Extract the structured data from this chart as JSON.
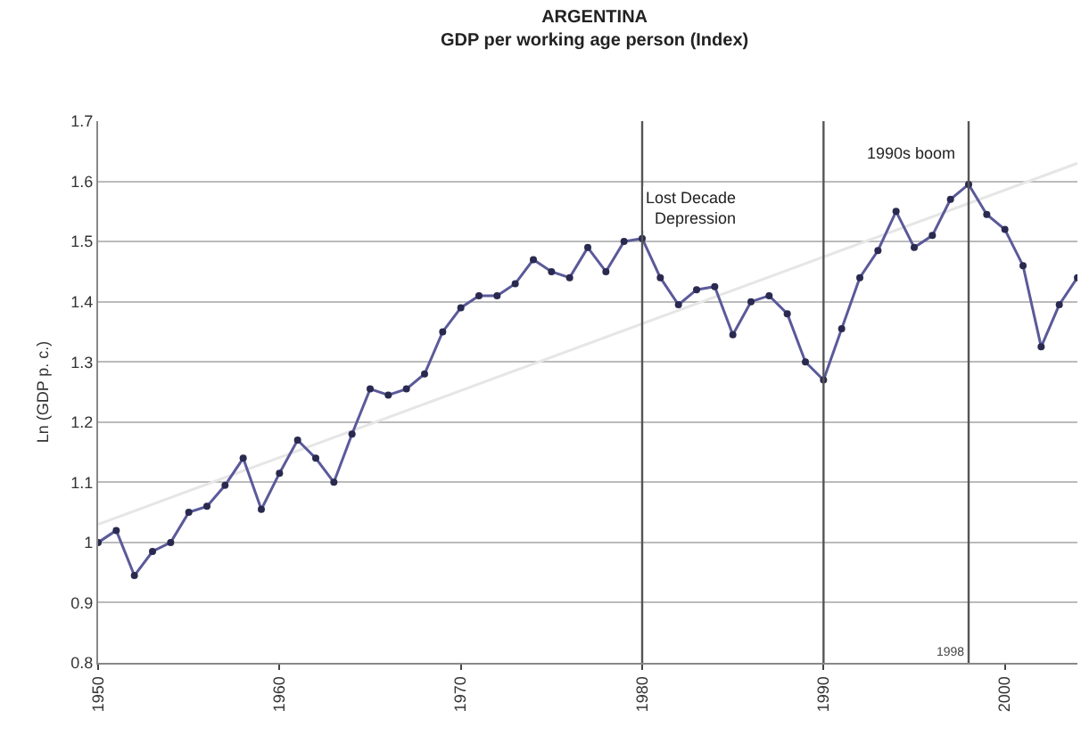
{
  "chart_data": {
    "type": "line",
    "title": "ARGENTINA",
    "subtitle": "GDP per working age person (Index)",
    "ylabel": "Ln (GDP p. c.)",
    "x": [
      1950,
      1951,
      1952,
      1953,
      1954,
      1955,
      1956,
      1957,
      1958,
      1959,
      1960,
      1961,
      1962,
      1963,
      1964,
      1965,
      1966,
      1967,
      1968,
      1969,
      1970,
      1971,
      1972,
      1973,
      1974,
      1975,
      1976,
      1977,
      1978,
      1979,
      1980,
      1981,
      1982,
      1983,
      1984,
      1985,
      1986,
      1987,
      1988,
      1989,
      1990,
      1991,
      1992,
      1993,
      1994,
      1995,
      1996,
      1997,
      1998,
      1999,
      2000,
      2001,
      2002,
      2003,
      2004
    ],
    "series": [
      {
        "color": "#5a5a9a",
        "marker": "circle",
        "values": [
          1.0,
          1.02,
          0.945,
          0.985,
          1.0,
          1.05,
          1.06,
          1.095,
          1.14,
          1.055,
          1.115,
          1.17,
          1.14,
          1.1,
          1.18,
          1.255,
          1.245,
          1.255,
          1.28,
          1.35,
          1.39,
          1.41,
          1.41,
          1.43,
          1.47,
          1.45,
          1.44,
          1.49,
          1.45,
          1.5,
          1.505,
          1.44,
          1.395,
          1.42,
          1.425,
          1.345,
          1.4,
          1.41,
          1.38,
          1.3,
          1.27,
          1.355,
          1.44,
          1.485,
          1.55,
          1.49,
          1.51,
          1.57,
          1.595,
          1.545,
          1.52,
          1.46,
          1.325,
          1.395,
          1.44
        ]
      },
      {
        "type": "line",
        "color": "#e6e6e6",
        "marker": "none",
        "x": [
          1950,
          2004
        ],
        "values": [
          1.03,
          1.63
        ]
      }
    ],
    "xlim": [
      1950,
      2004
    ],
    "xticks": [
      1950,
      1960,
      1970,
      1980,
      1990,
      2000
    ],
    "ylim": [
      0.8,
      1.7
    ],
    "yticks": [
      {
        "value": 0.8,
        "label": "0.8"
      },
      {
        "value": 0.9,
        "label": "0.9"
      },
      1,
      {
        "value": 1.1,
        "label": "1.1"
      },
      {
        "value": 1.2,
        "label": "1.2"
      },
      {
        "value": 1.3,
        "label": "1.3"
      },
      {
        "value": 1.4,
        "label": "1.4"
      },
      {
        "value": 1.5,
        "label": "1.5"
      },
      {
        "value": 1.6,
        "label": "1.6"
      },
      {
        "value": 1.7,
        "label": "1.7"
      }
    ],
    "grid": "y",
    "line_style": "solid",
    "ref_lines": [
      {
        "axis": "x",
        "value": 1980,
        "label": null,
        "color": "#555555"
      },
      {
        "axis": "x",
        "value": 1990,
        "label": null,
        "color": "#555555"
      },
      {
        "axis": "x",
        "value": 1998,
        "label": "1998",
        "color": "#555555"
      }
    ],
    "annotations": [
      "Lost Decade\nDepression",
      "1990s boom"
    ]
  }
}
